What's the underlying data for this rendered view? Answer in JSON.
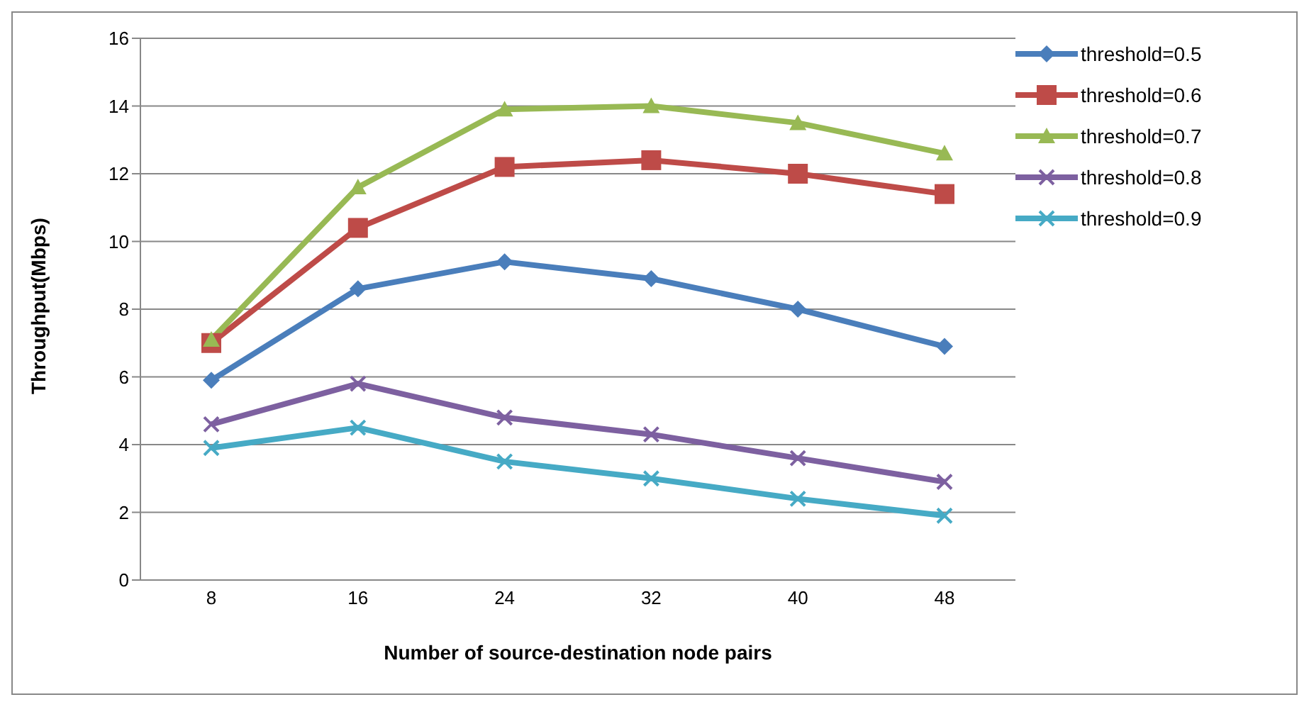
{
  "chart_data": {
    "type": "line",
    "xlabel": "Number of source-destination  node pairs",
    "ylabel": "Throughput(Mbps)",
    "categories": [
      "8",
      "16",
      "24",
      "32",
      "40",
      "48"
    ],
    "ylim": [
      0,
      16
    ],
    "yticks": [
      0,
      2,
      4,
      6,
      8,
      10,
      12,
      14,
      16
    ],
    "grid": "y",
    "legend": "right",
    "line_style": "solid",
    "series": [
      {
        "name": "threshold=0.5",
        "color": "#4a7ebb",
        "marker": "diamond",
        "values": [
          5.9,
          8.6,
          9.4,
          8.9,
          8.0,
          6.9
        ]
      },
      {
        "name": "threshold=0.6",
        "color": "#be4b48",
        "marker": "square",
        "values": [
          7.0,
          10.4,
          12.2,
          12.4,
          12.0,
          11.4
        ]
      },
      {
        "name": "threshold=0.7",
        "color": "#98b954",
        "marker": "triangle",
        "values": [
          7.1,
          11.6,
          13.9,
          14.0,
          13.5,
          12.6
        ]
      },
      {
        "name": "threshold=0.8",
        "color": "#7d60a0",
        "marker": "cross",
        "values": [
          4.6,
          5.8,
          4.8,
          4.3,
          3.6,
          2.9
        ]
      },
      {
        "name": "threshold=0.9",
        "color": "#46aac5",
        "marker": "cross",
        "values": [
          3.9,
          4.5,
          3.5,
          3.0,
          2.4,
          1.9
        ]
      }
    ]
  }
}
